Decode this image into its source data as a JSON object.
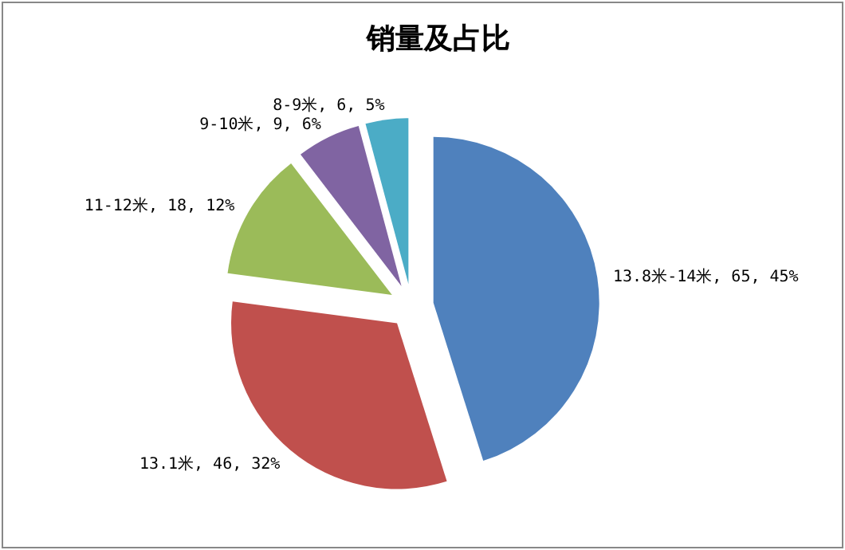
{
  "chart_data": {
    "type": "pie",
    "title": "销量及占比",
    "categories": [
      "13.8米-14米",
      "13.1米",
      "11-12米",
      "9-10米",
      "8-9米"
    ],
    "values": [
      65,
      46,
      18,
      9,
      6
    ],
    "colors": [
      "#4f81bd",
      "#c0504d",
      "#9bbb59",
      "#8064a2",
      "#4bacc6"
    ],
    "value_labels": [
      "65, 45%",
      "46, 32%",
      "18, 12%",
      "9, 6%",
      "6, 5%"
    ]
  }
}
